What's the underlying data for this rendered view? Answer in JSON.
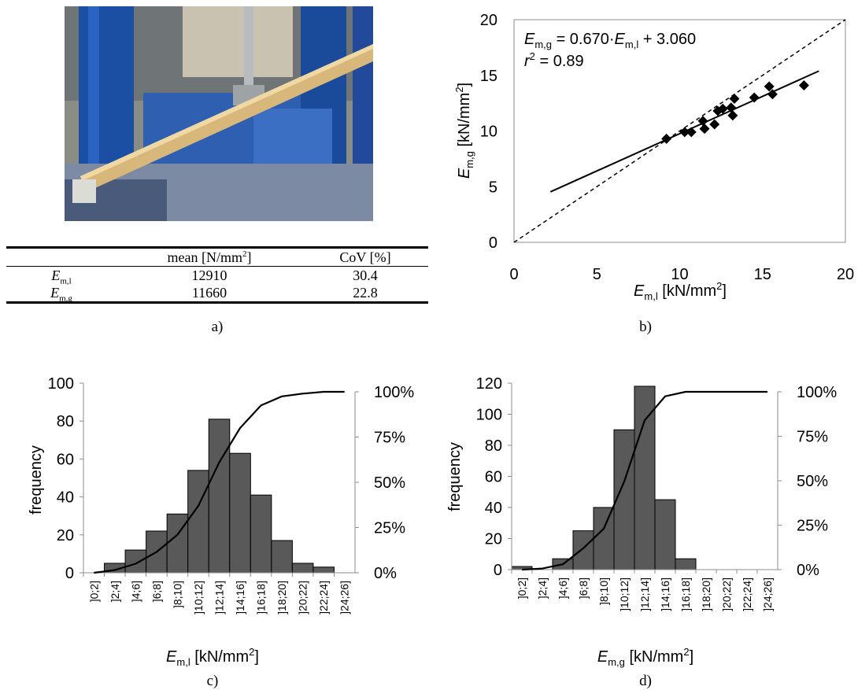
{
  "panels": {
    "a": {
      "caption": "a)",
      "table": {
        "header": [
          "",
          "mean [N/mm²]",
          "CoV [%]"
        ],
        "rows": [
          {
            "symbol": "E",
            "subscript": "m,l",
            "mean": "12910",
            "cov": "30.4"
          },
          {
            "symbol": "E",
            "subscript": "m,g",
            "mean": "11660",
            "cov": "22.8"
          }
        ]
      }
    },
    "b": {
      "caption": "b)"
    },
    "c": {
      "caption": "c)"
    },
    "d": {
      "caption": "d)"
    }
  },
  "chart_data": [
    {
      "id": "b",
      "type": "scatter",
      "xlabel": "E_m,l [kN/mm²]",
      "ylabel": "E_m,g [kN/mm²]",
      "xlim": [
        0,
        20
      ],
      "ylim": [
        0,
        20
      ],
      "xticks": [
        "0",
        "5",
        "10",
        "15",
        "20"
      ],
      "yticks": [
        "0",
        "5",
        "10",
        "15",
        "20"
      ],
      "points": [
        [
          9.2,
          9.3
        ],
        [
          10.3,
          9.9
        ],
        [
          10.7,
          9.9
        ],
        [
          11.4,
          10.9
        ],
        [
          11.5,
          10.2
        ],
        [
          12.1,
          10.6
        ],
        [
          12.3,
          11.8
        ],
        [
          12.6,
          12.0
        ],
        [
          13.1,
          12.1
        ],
        [
          13.2,
          11.4
        ],
        [
          13.3,
          12.9
        ],
        [
          14.5,
          13.0
        ],
        [
          15.4,
          14.0
        ],
        [
          15.6,
          13.3
        ],
        [
          17.5,
          14.1
        ]
      ],
      "regression": {
        "slope": 0.67,
        "intercept": 3.06,
        "x_range": [
          2.2,
          18.4
        ]
      },
      "identity_line": true,
      "annotation": {
        "equation": "E_m,g = 0.670·E_m,l + 3.060",
        "r2": "r² = 0.89"
      }
    },
    {
      "id": "c",
      "type": "bar",
      "categories": [
        "]0;2]",
        "]2;4]",
        "]4;6]",
        "]6;8]",
        "]8;10]",
        "]10;12]",
        "]12;14]",
        "]14;16]",
        "]16;18]",
        "]18;20]",
        "]20;22]",
        "]22;24]",
        "]24;26]"
      ],
      "values": [
        0,
        5,
        12,
        22,
        31,
        54,
        81,
        63,
        41,
        17,
        5,
        3,
        0
      ],
      "cumulative": [
        0,
        1.5,
        5,
        11.5,
        21,
        37,
        61,
        80,
        92.5,
        97.5,
        99,
        100,
        100
      ],
      "ylim": [
        0,
        100
      ],
      "yticks": [
        "0",
        "20",
        "40",
        "60",
        "80",
        "100"
      ],
      "y2ticks": [
        "0%",
        "25%",
        "50%",
        "75%",
        "100%"
      ],
      "ylabel": "frequency",
      "xlabel": "E_m,l [kN/mm²]"
    },
    {
      "id": "d",
      "type": "bar",
      "categories": [
        "]0;2]",
        "]2;4]",
        "]4;6]",
        "]6;8]",
        "]8;10]",
        "]10;12]",
        "]12;14]",
        "]14;16]",
        "]16;18]",
        "]18;20]",
        "]20;22]",
        "]22;24]",
        "]24;26]"
      ],
      "values": [
        2,
        0,
        7,
        25,
        40,
        90,
        118,
        45,
        7,
        0,
        0,
        0,
        0
      ],
      "cumulative": [
        0,
        0.6,
        3,
        12,
        23,
        49.5,
        84,
        97.5,
        100,
        100,
        100,
        100,
        100
      ],
      "ylim": [
        0,
        120
      ],
      "yticks": [
        "0",
        "20",
        "40",
        "60",
        "80",
        "100",
        "120"
      ],
      "y2ticks": [
        "0%",
        "25%",
        "50%",
        "75%",
        "100%"
      ],
      "ylabel": "frequency",
      "xlabel": "E_m,g [kN/mm²]"
    }
  ]
}
